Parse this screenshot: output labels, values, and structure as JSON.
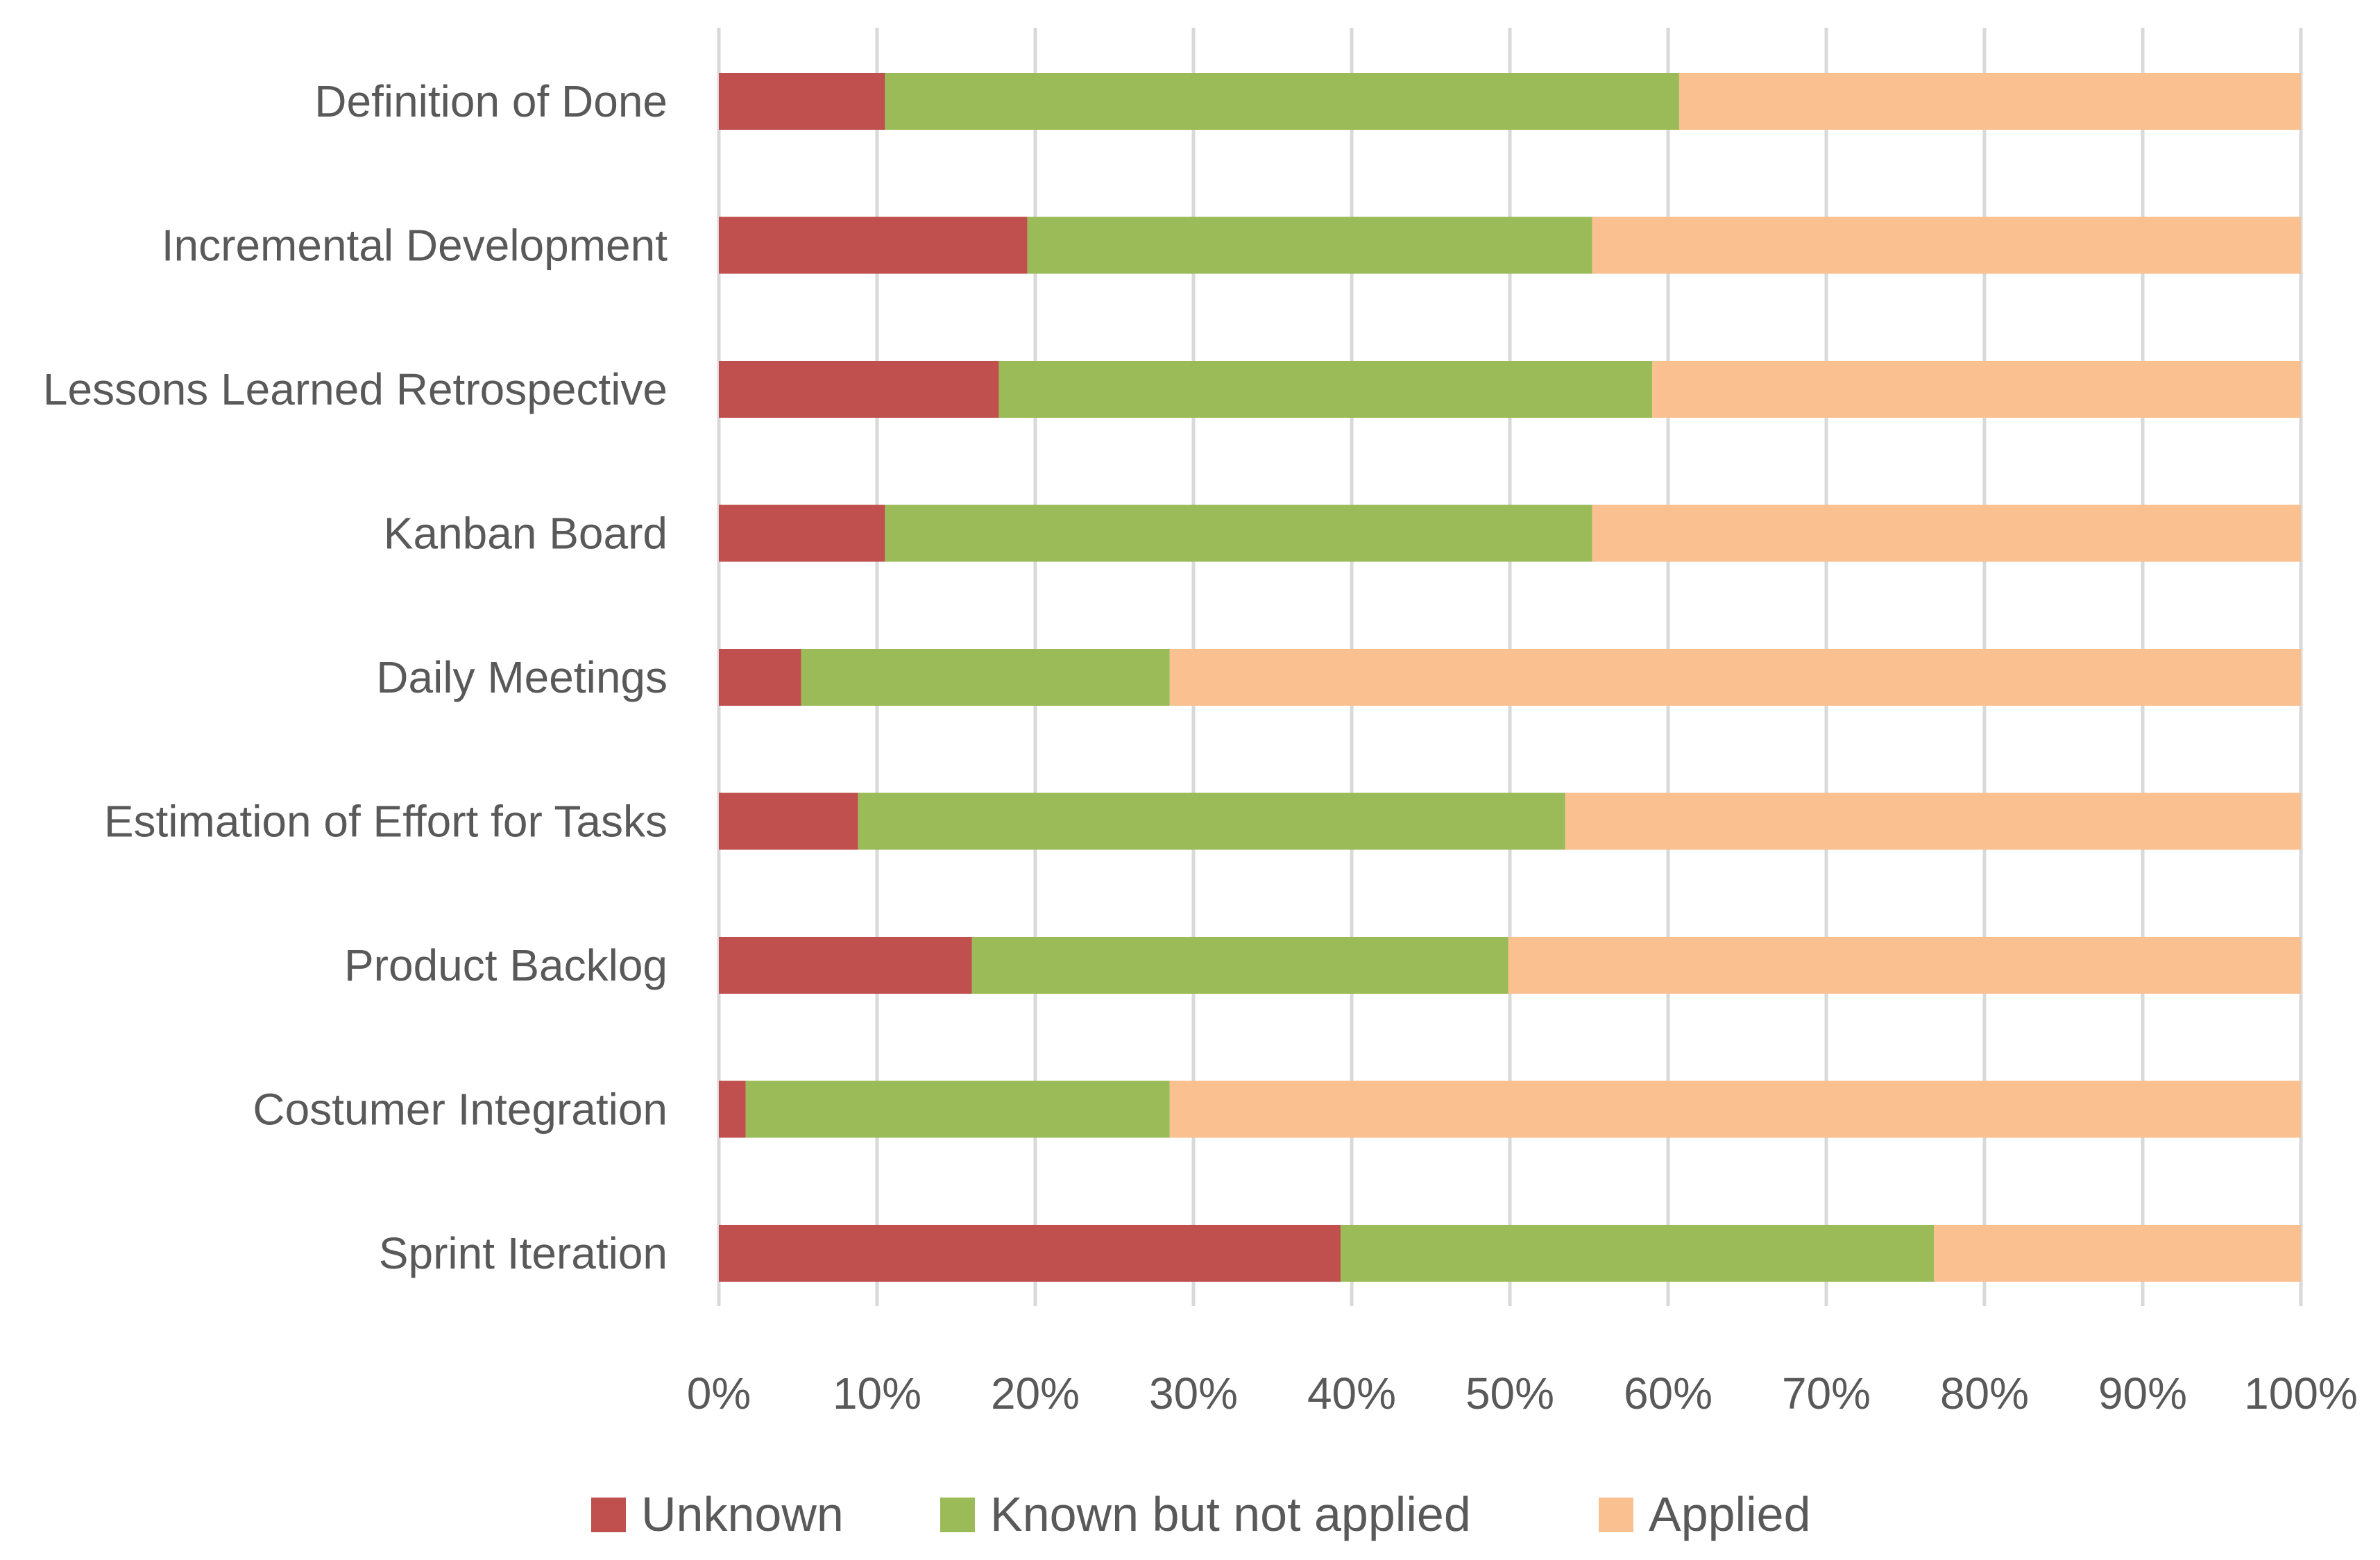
{
  "chart_data": {
    "type": "bar",
    "orientation": "horizontal",
    "stacked": "percent",
    "title": "",
    "xlabel": "",
    "ylabel": "",
    "xlim": [
      0,
      100
    ],
    "grid": true,
    "legend_position": "bottom",
    "categories": [
      "Definition of Done",
      "Incremental Development",
      "Lessons Learned Retrospective",
      "Kanban Board",
      "Daily Meetings",
      "Estimation of Effort for Tasks",
      "Product Backlog",
      "Costumer Integration",
      "Sprint Iteration"
    ],
    "x_ticks": [
      "0%",
      "10%",
      "20%",
      "30%",
      "40%",
      "50%",
      "60%",
      "70%",
      "80%",
      "90%",
      "100%"
    ],
    "series": [
      {
        "name": "Unknown",
        "color": "#c0504d",
        "values": [
          10.5,
          19.5,
          17.7,
          10.5,
          5.2,
          8.8,
          16,
          1.7,
          39.3
        ]
      },
      {
        "name": "Known but not applied",
        "color": "#9bbb59",
        "values": [
          50.2,
          35.7,
          41.3,
          44.7,
          23.3,
          44.7,
          33.9,
          26.8,
          37.5
        ]
      },
      {
        "name": "Applied",
        "color": "#fac090",
        "values": [
          39.3,
          44.8,
          41,
          44.8,
          71.5,
          46.5,
          50.1,
          71.5,
          23.2
        ]
      }
    ]
  }
}
